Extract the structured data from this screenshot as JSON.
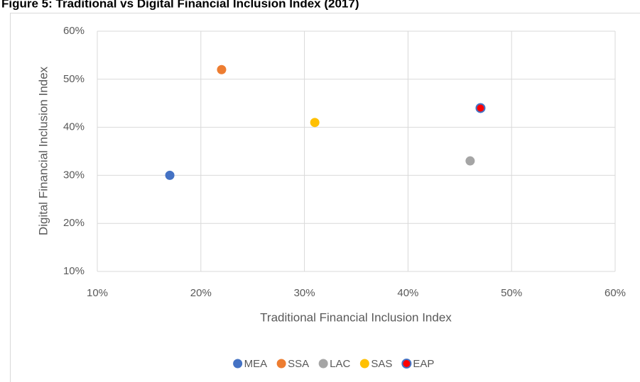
{
  "chart_data": {
    "type": "scatter",
    "title": "Figure 5: Traditional vs Digital Financial Inclusion Index (2017)",
    "xlabel": "Traditional Financial Inclusion Index",
    "ylabel": "Digital Financial Inclusion Index",
    "xlim": [
      10,
      60
    ],
    "ylim": [
      10,
      60
    ],
    "xticks": [
      {
        "value": 10,
        "label": "10%"
      },
      {
        "value": 20,
        "label": "20%"
      },
      {
        "value": 30,
        "label": "30%"
      },
      {
        "value": 40,
        "label": "40%"
      },
      {
        "value": 50,
        "label": "50%"
      },
      {
        "value": 60,
        "label": "60%"
      }
    ],
    "yticks": [
      {
        "value": 10,
        "label": "10%"
      },
      {
        "value": 20,
        "label": "20%"
      },
      {
        "value": 30,
        "label": "30%"
      },
      {
        "value": 40,
        "label": "40%"
      },
      {
        "value": 50,
        "label": "50%"
      },
      {
        "value": 60,
        "label": "60%"
      }
    ],
    "grid": true,
    "legend": "bottom",
    "series": [
      {
        "name": "MEA",
        "color": "#4472c4",
        "x": [
          17
        ],
        "y": [
          30
        ]
      },
      {
        "name": "SSA",
        "color": "#ed7d31",
        "x": [
          22
        ],
        "y": [
          52
        ]
      },
      {
        "name": "LAC",
        "color": "#a5a5a5",
        "x": [
          46
        ],
        "y": [
          33
        ]
      },
      {
        "name": "SAS",
        "color": "#ffc000",
        "x": [
          31
        ],
        "y": [
          41
        ]
      },
      {
        "name": "EAP",
        "color": "#ff0000",
        "edgecolor": "#4472c4",
        "x": [
          47
        ],
        "y": [
          44
        ]
      }
    ]
  }
}
